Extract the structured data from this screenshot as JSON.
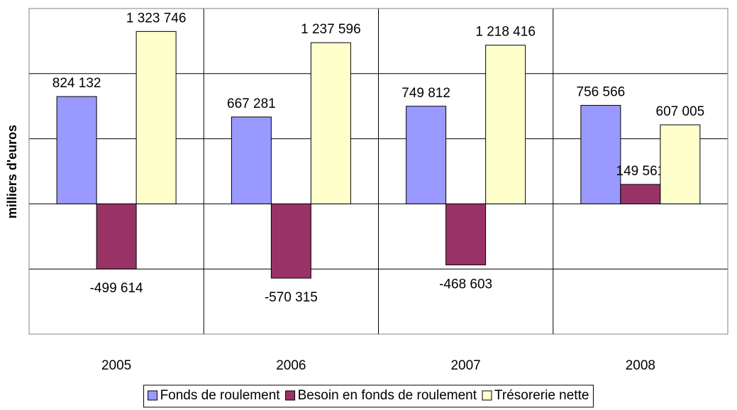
{
  "chart_data": {
    "type": "bar",
    "y_label": "milliers d'euros",
    "categories": [
      "2005",
      "2006",
      "2007",
      "2008"
    ],
    "series": [
      {
        "name": "Fonds de roulement",
        "color": "#9999ff",
        "values": [
          824132,
          667281,
          749812,
          756566
        ],
        "value_labels": [
          "824 132",
          "667 281",
          "749 812",
          "756 566"
        ]
      },
      {
        "name": "Besoin en fonds de roulement",
        "color": "#993366",
        "values": [
          -499614,
          -570315,
          -468603,
          149561
        ],
        "value_labels": [
          "-499 614",
          "-570 315",
          "-468 603",
          "149 561"
        ]
      },
      {
        "name": "Trésorerie nette",
        "color": "#ffffcc",
        "values": [
          1323746,
          1237596,
          1218416,
          607005
        ],
        "value_labels": [
          "1 323 746",
          "1 237 596",
          "1 218 416",
          "607 005"
        ]
      }
    ],
    "ylim": [
      -1000000,
      1500000
    ],
    "yticks": [
      -1000000,
      -500000,
      0,
      500000,
      1000000,
      1500000
    ],
    "grid": true
  }
}
